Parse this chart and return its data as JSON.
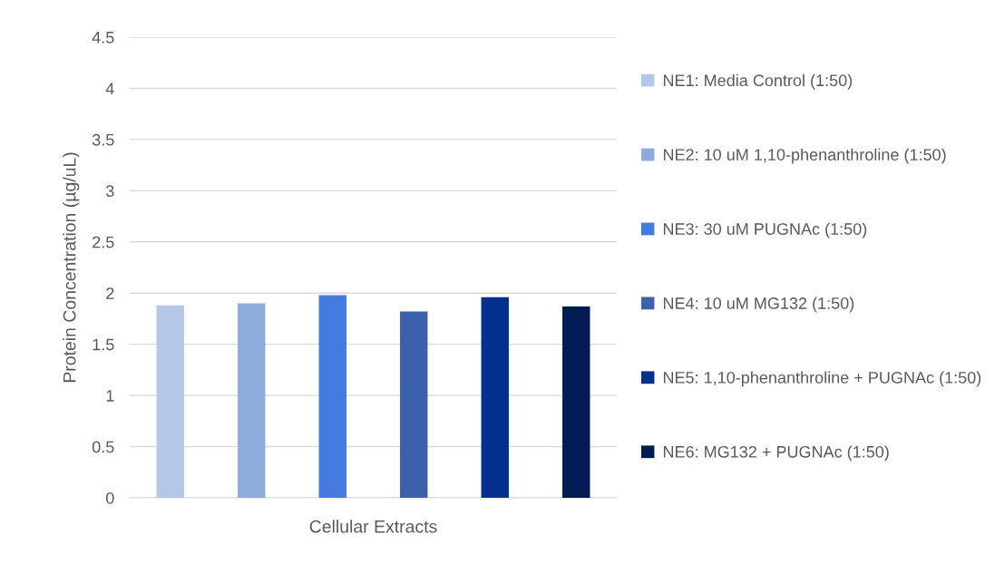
{
  "chart_data": {
    "type": "bar",
    "xlabel": "Cellular Extracts",
    "ylabel": "Protein Concentration (µg/uL)",
    "categories": [
      null
    ],
    "series": [
      {
        "name": "NE1: Media Control (1:50)",
        "color": "#b4c7e7",
        "values": [
          1.88
        ]
      },
      {
        "name": "NE2: 10 uM 1,10-phenanthroline (1:50)",
        "color": "#8faadc",
        "values": [
          1.9
        ]
      },
      {
        "name": "NE3: 30 uM PUGNAc (1:50)",
        "color": "#447be0",
        "values": [
          1.98
        ]
      },
      {
        "name": "NE4: 10 uM MG132 (1:50)",
        "color": "#3c62ad",
        "values": [
          1.82
        ]
      },
      {
        "name": "NE5: 1,10-phenanthroline + PUGNAc (1:50)",
        "color": "#03308d",
        "values": [
          1.96
        ]
      },
      {
        "name": "NE6: MG132 + PUGNAc (1:50)",
        "color": "#011c55",
        "values": [
          1.87
        ]
      }
    ],
    "ylim": [
      0,
      4.5
    ],
    "yticks": [
      0,
      0.5,
      1,
      1.5,
      2,
      2.5,
      3,
      3.5,
      4,
      4.5
    ],
    "grid": "y",
    "legend": "right"
  }
}
